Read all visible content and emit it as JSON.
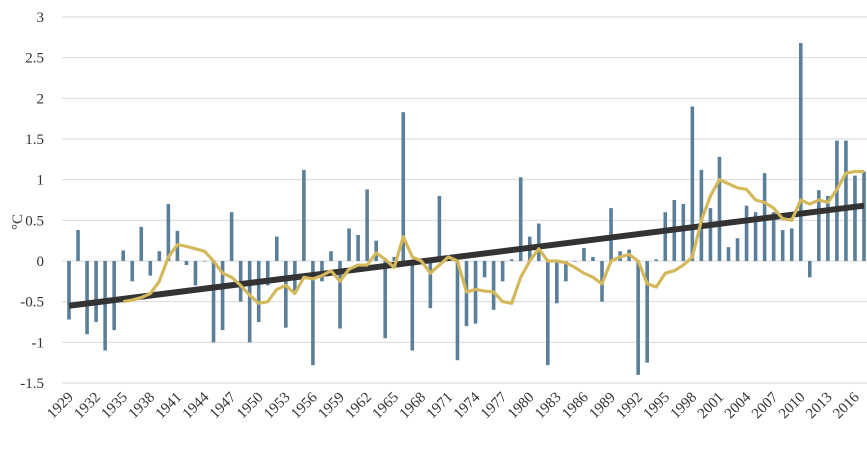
{
  "chart_data": {
    "type": "bar",
    "ylabel": "°C",
    "ylim": [
      -1.5,
      3
    ],
    "yticks": [
      "-1.5",
      "-1",
      "-0.5",
      "0",
      "0.5",
      "1",
      "1.5",
      "2",
      "2.5",
      "3"
    ],
    "x_tick_labels": [
      "1929",
      "1932",
      "1935",
      "1938",
      "1941",
      "1944",
      "1947",
      "1950",
      "1953",
      "1956",
      "1959",
      "1962",
      "1965",
      "1968",
      "1971",
      "1974",
      "1977",
      "1980",
      "1983",
      "1986",
      "1989",
      "1992",
      "1995",
      "1998",
      "2001",
      "2004",
      "2007",
      "2010",
      "2013",
      "2016"
    ],
    "grid": true,
    "years": [
      1929,
      1930,
      1931,
      1932,
      1933,
      1934,
      1935,
      1936,
      1937,
      1938,
      1939,
      1940,
      1941,
      1942,
      1943,
      1944,
      1945,
      1946,
      1947,
      1948,
      1949,
      1950,
      1951,
      1952,
      1953,
      1954,
      1955,
      1956,
      1957,
      1958,
      1959,
      1960,
      1961,
      1962,
      1963,
      1964,
      1965,
      1966,
      1967,
      1968,
      1969,
      1970,
      1971,
      1972,
      1973,
      1974,
      1975,
      1976,
      1977,
      1978,
      1979,
      1980,
      1981,
      1982,
      1983,
      1984,
      1985,
      1986,
      1987,
      1988,
      1989,
      1990,
      1991,
      1992,
      1993,
      1994,
      1995,
      1996,
      1997,
      1998,
      1999,
      2000,
      2001,
      2002,
      2003,
      2004,
      2005,
      2006,
      2007,
      2008,
      2009,
      2010,
      2011,
      2012,
      2013,
      2014,
      2015,
      2016,
      2017
    ],
    "series": [
      {
        "kind": "bar",
        "color": "#5b7f99",
        "values": [
          -0.72,
          0.38,
          -0.9,
          -0.75,
          -1.1,
          -0.85,
          0.13,
          -0.25,
          0.42,
          -0.18,
          0.12,
          0.7,
          0.37,
          -0.05,
          -0.3,
          0.0,
          -1.0,
          -0.85,
          0.6,
          -0.5,
          -1.0,
          -0.75,
          -0.3,
          0.3,
          -0.82,
          -0.4,
          1.12,
          -1.28,
          -0.25,
          0.12,
          -0.83,
          0.4,
          0.32,
          0.88,
          0.25,
          -0.95,
          0.05,
          1.83,
          -1.1,
          0.0,
          -0.58,
          0.8,
          0.05,
          -1.22,
          -0.8,
          -0.77,
          -0.2,
          -0.6,
          -0.25,
          0.02,
          1.03,
          0.3,
          0.46,
          -1.28,
          -0.52,
          -0.25,
          0.0,
          0.16,
          0.05,
          -0.5,
          0.65,
          0.12,
          0.14,
          -1.4,
          -1.25,
          0.02,
          0.6,
          0.75,
          0.7,
          1.9,
          1.12,
          0.65,
          1.28,
          0.17,
          0.28,
          0.68,
          0.6,
          1.08,
          0.6,
          0.38,
          0.4,
          2.68,
          -0.2,
          0.87,
          0.8,
          1.48,
          1.48,
          1.05,
          1.1
        ]
      },
      {
        "kind": "line",
        "color": "#d4b85c",
        "values": [
          null,
          null,
          null,
          null,
          null,
          null,
          -0.5,
          -0.48,
          -0.45,
          -0.4,
          -0.25,
          0.05,
          0.2,
          0.18,
          0.15,
          0.12,
          0.0,
          -0.15,
          -0.2,
          -0.3,
          -0.42,
          -0.52,
          -0.5,
          -0.35,
          -0.3,
          -0.4,
          -0.2,
          -0.22,
          -0.18,
          -0.12,
          -0.25,
          -0.1,
          -0.05,
          -0.05,
          0.1,
          0.02,
          -0.08,
          0.3,
          0.05,
          0.0,
          -0.15,
          -0.05,
          0.05,
          0.0,
          -0.38,
          -0.35,
          -0.37,
          -0.38,
          -0.5,
          -0.52,
          -0.2,
          0.0,
          0.15,
          0.0,
          0.0,
          -0.02,
          -0.08,
          -0.15,
          -0.2,
          -0.28,
          0.0,
          0.05,
          0.08,
          0.0,
          -0.28,
          -0.32,
          -0.15,
          -0.12,
          -0.05,
          0.05,
          0.5,
          0.8,
          1.0,
          0.95,
          0.9,
          0.88,
          0.75,
          0.72,
          0.65,
          0.52,
          0.5,
          0.75,
          0.7,
          0.75,
          0.72,
          0.88,
          1.08,
          1.1,
          1.1
        ]
      },
      {
        "kind": "trend",
        "color": "#333333",
        "values_at_ends": [
          -0.55,
          0.68
        ]
      }
    ]
  }
}
